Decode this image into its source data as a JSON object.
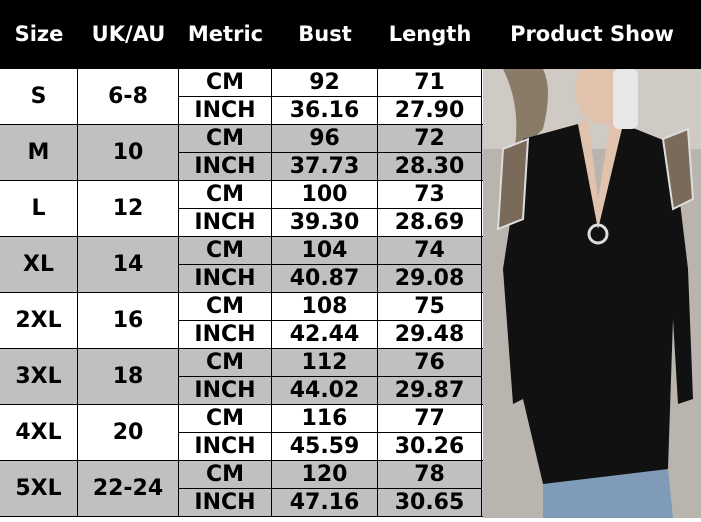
{
  "header": {
    "columns": [
      "Size",
      "UK/AU",
      "Metric",
      "Bust",
      "Length",
      "Product Show"
    ]
  },
  "rows": [
    {
      "size": "S",
      "uk_au": "6-8",
      "cm": {
        "metric": "CM",
        "bust": "92",
        "length": "71"
      },
      "inch": {
        "metric": "INCH",
        "bust": "36.16",
        "length": "27.90"
      }
    },
    {
      "size": "M",
      "uk_au": "10",
      "cm": {
        "metric": "CM",
        "bust": "96",
        "length": "72"
      },
      "inch": {
        "metric": "INCH",
        "bust": "37.73",
        "length": "28.30"
      }
    },
    {
      "size": "L",
      "uk_au": "12",
      "cm": {
        "metric": "CM",
        "bust": "100",
        "length": "73"
      },
      "inch": {
        "metric": "INCH",
        "bust": "39.30",
        "length": "28.69"
      }
    },
    {
      "size": "XL",
      "uk_au": "14",
      "cm": {
        "metric": "CM",
        "bust": "104",
        "length": "74"
      },
      "inch": {
        "metric": "INCH",
        "bust": "40.87",
        "length": "29.08"
      }
    },
    {
      "size": "2XL",
      "uk_au": "16",
      "cm": {
        "metric": "CM",
        "bust": "108",
        "length": "75"
      },
      "inch": {
        "metric": "INCH",
        "bust": "42.44",
        "length": "29.48"
      }
    },
    {
      "size": "3XL",
      "uk_au": "18",
      "cm": {
        "metric": "CM",
        "bust": "112",
        "length": "76"
      },
      "inch": {
        "metric": "INCH",
        "bust": "44.02",
        "length": "29.87"
      }
    },
    {
      "size": "4XL",
      "uk_au": "20",
      "cm": {
        "metric": "CM",
        "bust": "116",
        "length": "77"
      },
      "inch": {
        "metric": "INCH",
        "bust": "45.59",
        "length": "30.26"
      }
    },
    {
      "size": "5XL",
      "uk_au": "22-24",
      "cm": {
        "metric": "CM",
        "bust": "120",
        "length": "78"
      },
      "inch": {
        "metric": "INCH",
        "bust": "47.16",
        "length": "30.65"
      }
    }
  ],
  "colors": {
    "header_bg": "#000000",
    "header_text": "#ffffff",
    "alt_row": "#c0c0c0",
    "shirt": "#111111"
  }
}
